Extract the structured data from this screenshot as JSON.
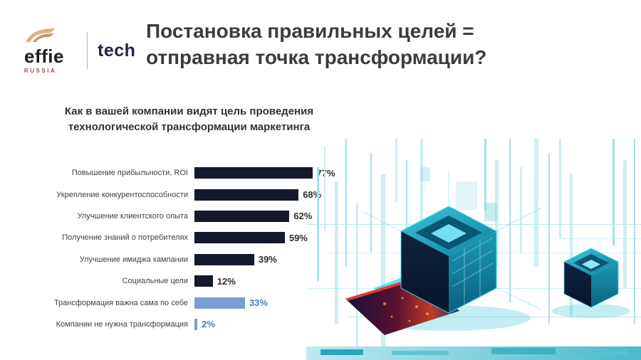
{
  "logos": {
    "effie": "effie",
    "effie_sub": "RUSSIA",
    "tech": "tech"
  },
  "header": {
    "title_line1": "Постановка правильных целей =",
    "title_line2": "отправная точка трансформации?"
  },
  "chart_heading": {
    "line1": "Как в вашей компании видят цель проведения",
    "line2": "технологической трансформации маркетинга"
  },
  "chart_data": {
    "type": "bar",
    "orientation": "horizontal",
    "title": "Как в вашей компании видят цель проведения технологической трансформации маркетинга",
    "categories": [
      "Повышение прибыльности, ROI",
      "Укрепление конкурентоспособности",
      "Улучшение клиентского опыта",
      "Получение знаний о потребителях",
      "Улучшение имиджа кампании",
      "Социальные цели",
      "Трансформация важна сама по себе",
      "Компании не нужна трансформация"
    ],
    "values": [
      77,
      68,
      62,
      59,
      39,
      12,
      33,
      2
    ],
    "value_suffix": "%",
    "xlim": [
      0,
      100
    ],
    "grid": false,
    "legend": false,
    "highlight_indices": [
      6,
      7
    ],
    "colors": {
      "primary_bar": "#14192e",
      "highlight_bar": "#7b9cd4",
      "value_label": "#2e2e2e",
      "highlight_value_label": "#4f79bd",
      "category_label": "#3f3f3f"
    }
  }
}
